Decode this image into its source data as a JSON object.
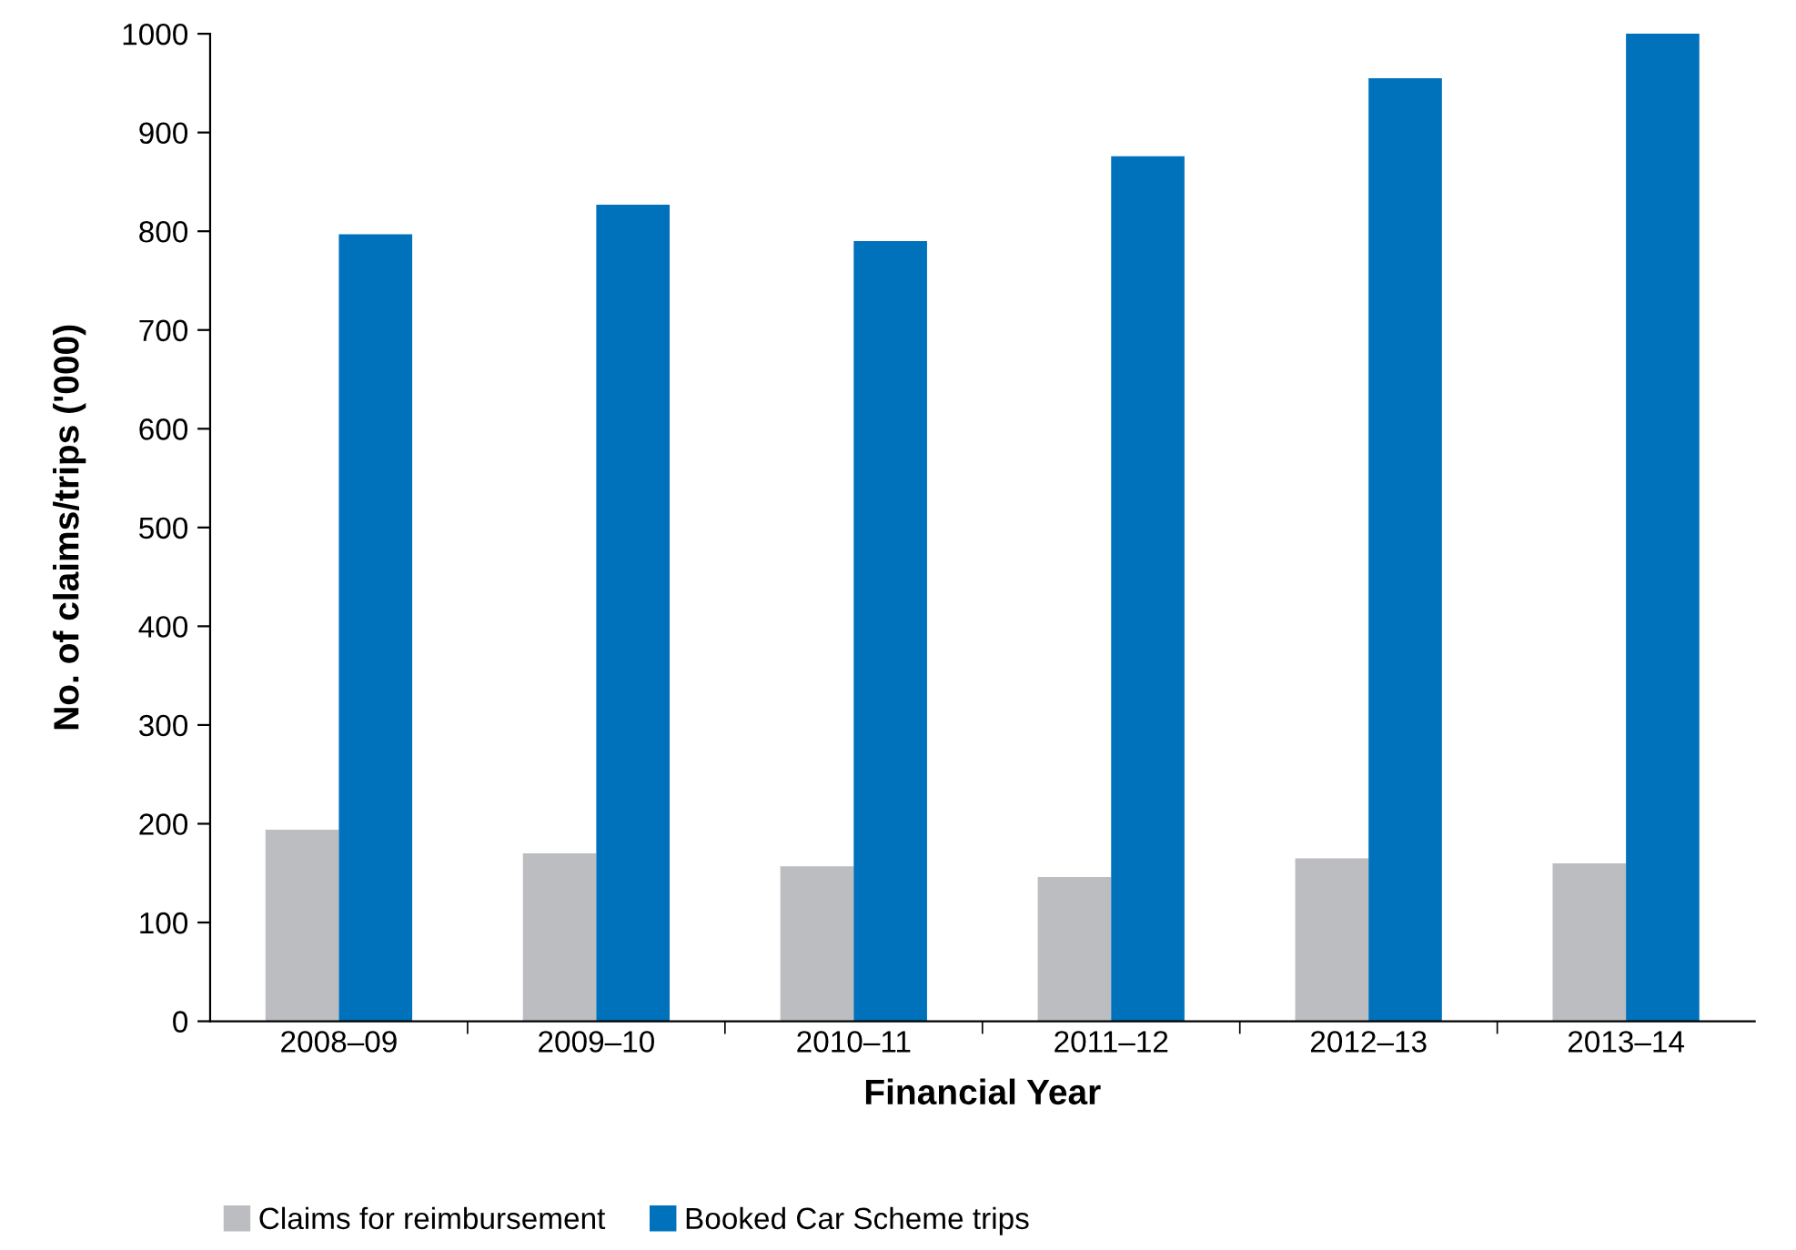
{
  "chart_data": {
    "type": "bar",
    "xlabel": "Financial Year",
    "ylabel": "No. of claims/trips ('000)",
    "categories": [
      "2008–09",
      "2009–10",
      "2010–11",
      "2011–12",
      "2012–13",
      "2013–14"
    ],
    "series": [
      {
        "name": "Claims for reimbursement",
        "color": "#bcbdc0",
        "values": [
          194,
          170,
          157,
          146,
          165,
          160
        ]
      },
      {
        "name": "Booked Car Scheme trips",
        "color": "#0072bc",
        "values": [
          797,
          827,
          790,
          876,
          955,
          1000
        ]
      }
    ],
    "ylim": [
      0,
      1000
    ],
    "yticks": [
      0,
      100,
      200,
      300,
      400,
      500,
      600,
      700,
      800,
      900,
      1000
    ],
    "grid": false,
    "legend": "bottom left"
  }
}
